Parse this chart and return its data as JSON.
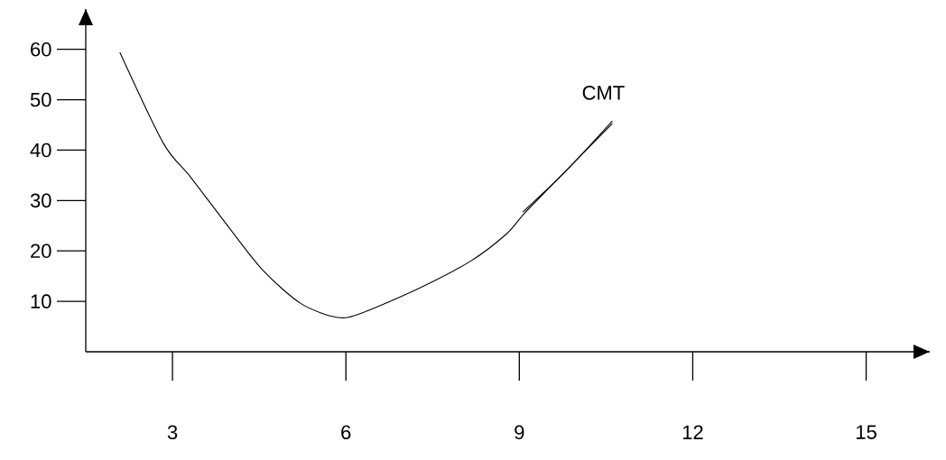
{
  "chart_data": {
    "type": "line",
    "xlim": [
      1.5,
      16.1
    ],
    "ylim": [
      0,
      68
    ],
    "xticks": [
      3,
      6,
      9,
      12,
      15
    ],
    "yticks": [
      10,
      20,
      30,
      40,
      50,
      60
    ],
    "series": [
      {
        "name": "CMT",
        "color": "#000000",
        "x": [
          2.09,
          2.84,
          3.31,
          3.94,
          4.56,
          5.23,
          5.86,
          6.28,
          7.27,
          8.16,
          8.78,
          9.09,
          9.61,
          10.61
        ],
        "values": [
          59.4,
          41.4,
          34.7,
          25.2,
          16.2,
          9.5,
          6.8,
          7.7,
          12.6,
          18.0,
          23.4,
          27.5,
          33.6,
          45.3
        ]
      },
      {
        "color": "#000000",
        "x": [
          9.06,
          9.8,
          10.61
        ],
        "values": [
          27.7,
          35.8,
          45.8
        ]
      }
    ]
  }
}
